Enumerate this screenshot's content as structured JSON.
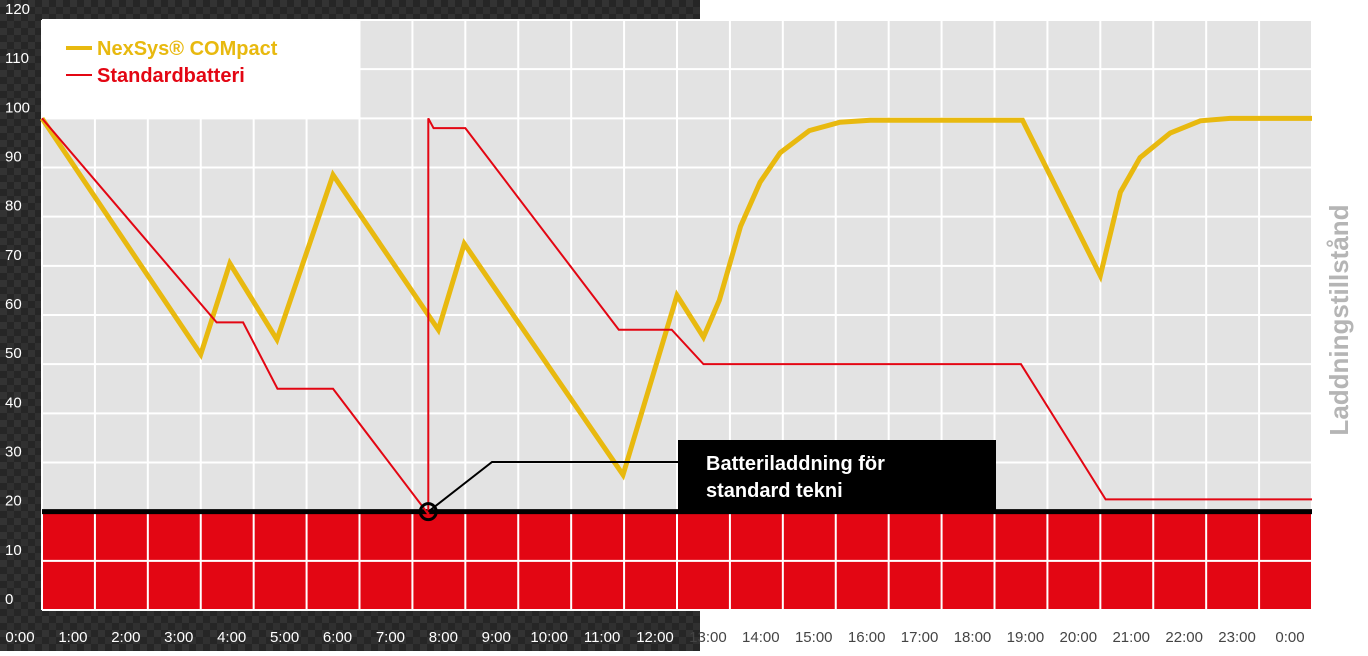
{
  "chart_data": {
    "type": "line",
    "y_label": "Laddningstillstånd",
    "xlim": [
      0,
      24
    ],
    "ylim": [
      0,
      120
    ],
    "yticks": [
      0,
      10,
      20,
      30,
      40,
      50,
      60,
      70,
      80,
      90,
      100,
      110,
      120
    ],
    "xticks": [
      {
        "value": 0,
        "label": "0:00"
      },
      {
        "value": 1,
        "label": "1:00"
      },
      {
        "value": 2,
        "label": "2:00"
      },
      {
        "value": 3,
        "label": "3:00"
      },
      {
        "value": 4,
        "label": "4:00"
      },
      {
        "value": 5,
        "label": "5:00"
      },
      {
        "value": 6,
        "label": "6:00"
      },
      {
        "value": 7,
        "label": "7:00"
      },
      {
        "value": 8,
        "label": "8:00"
      },
      {
        "value": 9,
        "label": "9:00"
      },
      {
        "value": 10,
        "label": "10:00"
      },
      {
        "value": 11,
        "label": "11:00"
      },
      {
        "value": 12,
        "label": "12:00"
      },
      {
        "value": 13,
        "label": "13:00"
      },
      {
        "value": 14,
        "label": "14:00"
      },
      {
        "value": 15,
        "label": "15:00"
      },
      {
        "value": 16,
        "label": "16:00"
      },
      {
        "value": 17,
        "label": "17:00"
      },
      {
        "value": 18,
        "label": "18:00"
      },
      {
        "value": 19,
        "label": "19:00"
      },
      {
        "value": 20,
        "label": "20:00"
      },
      {
        "value": 21,
        "label": "21:00"
      },
      {
        "value": 22,
        "label": "22:00"
      },
      {
        "value": 23,
        "label": "23:00"
      },
      {
        "value": 24,
        "label": "0:00"
      }
    ],
    "grid": true,
    "threshold": 20,
    "threshold_color": "#e30613",
    "annotation": {
      "lines": [
        "Batteriladdning för",
        "standard tekni"
      ],
      "x": 7.3,
      "y": 20
    },
    "series": [
      {
        "name": "NexSys® COMpact",
        "color": "#e8b90f",
        "x": [
          0,
          3.0,
          3.55,
          4.44,
          5.5,
          7.49,
          7.98,
          10.98,
          12.0,
          12.5,
          12.8,
          13.2,
          13.57,
          13.95,
          14.5,
          15.08,
          15.65,
          18.53,
          20.0,
          20.38,
          20.75,
          21.32,
          21.89,
          22.45,
          24
        ],
        "values": [
          100,
          52,
          70.5,
          55,
          88.5,
          57,
          74.5,
          27.5,
          64,
          55.5,
          63,
          78,
          87,
          93,
          97.5,
          99.2,
          99.6,
          99.6,
          68,
          85,
          92,
          97,
          99.5,
          100,
          100
        ]
      },
      {
        "name": "Standardbatteri",
        "color": "#e30613",
        "x": [
          0,
          3.3,
          3.8,
          4.45,
          5.5,
          7.3,
          7.3,
          7.4,
          8.0,
          10.9,
          11.9,
          12.5,
          18.5,
          20.1,
          24
        ],
        "values": [
          100,
          58.5,
          58.5,
          45,
          45,
          19.5,
          100,
          98,
          98,
          57,
          57,
          50,
          50,
          22.5,
          22.5
        ]
      }
    ]
  }
}
